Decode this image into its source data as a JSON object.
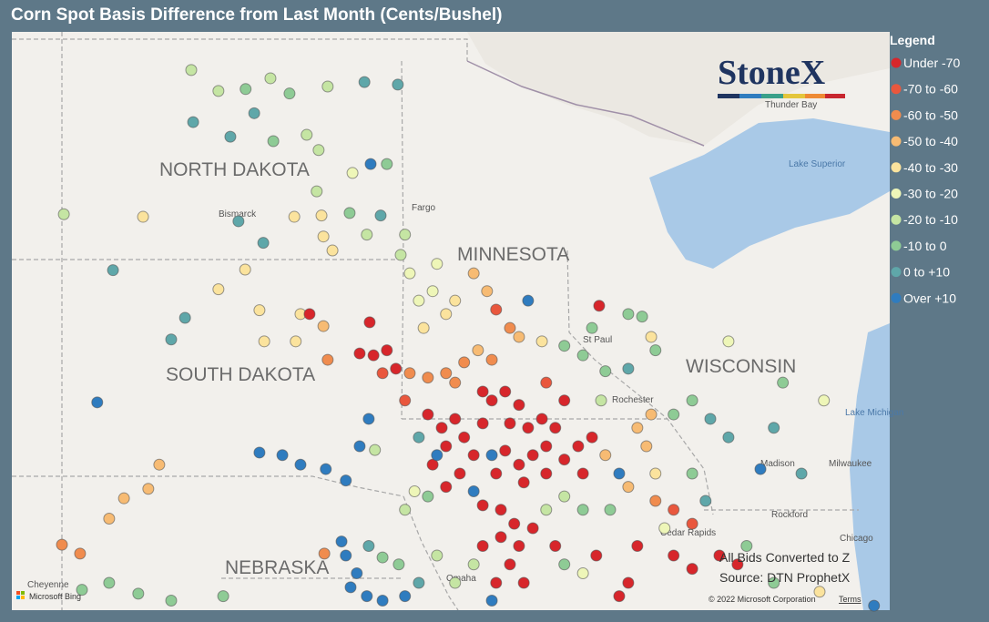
{
  "header": {
    "title": "Corn Spot Basis Difference from Last Month (Cents/Bushel)"
  },
  "legend": {
    "title": "Legend",
    "items": [
      {
        "label": "Under -70",
        "color": "#d7262b"
      },
      {
        "label": "-70 to -60",
        "color": "#e9573d"
      },
      {
        "label": "-60 to -50",
        "color": "#f08c4e"
      },
      {
        "label": "-50 to -40",
        "color": "#f7bb73"
      },
      {
        "label": "-40 to -30",
        "color": "#fbe39d"
      },
      {
        "label": "-30 to -20",
        "color": "#eef6b8"
      },
      {
        "label": "-20 to -10",
        "color": "#c5e5a3"
      },
      {
        "label": "-10 to 0",
        "color": "#8ecb95"
      },
      {
        "label": "0 to +10",
        "color": "#5fa7a9"
      },
      {
        "label": "Over +10",
        "color": "#2f7cbf"
      }
    ]
  },
  "map": {
    "lon_range": [
      -105,
      -86.6
    ],
    "lat_range": [
      40.7,
      49.8
    ],
    "states": [
      "NORTH DAKOTA",
      "MINNESOTA",
      "SOUTH DAKOTA",
      "WISCONSIN",
      "NEBRASKA"
    ],
    "places": [
      "Bismarck",
      "Fargo",
      "St Paul",
      "Rochester",
      "Thunder Bay",
      "Lake Superior",
      "Lake Michigan",
      "Milwaukee",
      "Madison",
      "Rockford",
      "Chicago",
      "Cedar Rapids",
      "Omaha",
      "Cheyenne"
    ],
    "brand": "StoneX",
    "notes": [
      "All Bids Converted to Z",
      "Source: DTN ProphetX"
    ],
    "credits": [
      "Microsoft Bing",
      "© 2022 Microsoft Corporation",
      "Terms"
    ],
    "points": [
      [
        -101.24,
        49.2,
        6
      ],
      [
        -100.67,
        48.87,
        6
      ],
      [
        -100.1,
        48.9,
        7
      ],
      [
        -99.58,
        49.07,
        6
      ],
      [
        -99.18,
        48.83,
        7
      ],
      [
        -98.38,
        48.94,
        6
      ],
      [
        -97.61,
        49.01,
        8
      ],
      [
        -96.91,
        48.97,
        8
      ],
      [
        -101.2,
        48.38,
        8
      ],
      [
        -100.42,
        48.15,
        8
      ],
      [
        -99.92,
        48.52,
        8
      ],
      [
        -99.52,
        48.08,
        7
      ],
      [
        -98.82,
        48.18,
        6
      ],
      [
        -98.57,
        47.94,
        6
      ],
      [
        -97.86,
        47.58,
        5
      ],
      [
        -97.48,
        47.72,
        9
      ],
      [
        -97.14,
        47.72,
        7
      ],
      [
        -98.61,
        47.29,
        6
      ],
      [
        -103.91,
        46.93,
        6
      ],
      [
        -102.25,
        46.89,
        4
      ],
      [
        -100.25,
        46.82,
        8
      ],
      [
        -99.08,
        46.89,
        4
      ],
      [
        -98.51,
        46.91,
        4
      ],
      [
        -97.92,
        46.95,
        7
      ],
      [
        -97.27,
        46.91,
        8
      ],
      [
        -99.73,
        46.48,
        8
      ],
      [
        -102.88,
        46.05,
        8
      ],
      [
        -98.47,
        46.58,
        4
      ],
      [
        -98.28,
        46.36,
        4
      ],
      [
        -97.56,
        46.61,
        6
      ],
      [
        -96.76,
        46.61,
        6
      ],
      [
        -100.11,
        46.06,
        4
      ],
      [
        -100.67,
        45.75,
        4
      ],
      [
        -101.37,
        45.3,
        8
      ],
      [
        -101.66,
        44.96,
        8
      ],
      [
        -103.21,
        43.97,
        9
      ],
      [
        -99.81,
        45.42,
        4
      ],
      [
        -98.95,
        45.36,
        4
      ],
      [
        -98.76,
        45.36,
        0
      ],
      [
        -98.47,
        45.17,
        3
      ],
      [
        -97.5,
        45.23,
        0
      ],
      [
        -99.05,
        44.93,
        4
      ],
      [
        -99.71,
        44.93,
        4
      ],
      [
        -98.38,
        44.64,
        2
      ],
      [
        -101.91,
        42.99,
        3
      ],
      [
        -102.65,
        42.46,
        3
      ],
      [
        -102.96,
        42.14,
        3
      ],
      [
        -102.14,
        42.61,
        3
      ],
      [
        -103.95,
        41.73,
        2
      ],
      [
        -103.57,
        41.59,
        2
      ],
      [
        -99.81,
        43.18,
        9
      ],
      [
        -99.33,
        43.14,
        9
      ],
      [
        -98.95,
        42.99,
        9
      ],
      [
        -98.42,
        42.92,
        9
      ],
      [
        -98,
        42.74,
        9
      ],
      [
        -97.52,
        43.71,
        9
      ],
      [
        -97.71,
        43.28,
        9
      ],
      [
        -97.39,
        43.22,
        6
      ],
      [
        -98.09,
        41.78,
        9
      ],
      [
        -98,
        41.56,
        9
      ],
      [
        -97.77,
        41.28,
        9
      ],
      [
        -97.9,
        41.06,
        9
      ],
      [
        -98.45,
        41.59,
        2
      ],
      [
        -97.52,
        41.71,
        8
      ],
      [
        -97.23,
        41.53,
        7
      ],
      [
        -96.89,
        41.42,
        7
      ],
      [
        -97.56,
        40.92,
        9
      ],
      [
        -97.23,
        40.85,
        9
      ],
      [
        -103.53,
        41.02,
        7
      ],
      [
        -102.96,
        41.13,
        7
      ],
      [
        -102.35,
        40.96,
        7
      ],
      [
        -101.66,
        40.85,
        7
      ],
      [
        -100.57,
        40.92,
        7
      ],
      [
        -97.71,
        44.74,
        0
      ],
      [
        -97.42,
        44.71,
        0
      ],
      [
        -97.14,
        44.79,
        0
      ],
      [
        -96.95,
        44.5,
        0
      ],
      [
        -97.23,
        44.43,
        1
      ],
      [
        -96.66,
        44.43,
        2
      ],
      [
        -96.28,
        44.36,
        2
      ],
      [
        -95.9,
        44.43,
        2
      ],
      [
        -95.52,
        44.6,
        2
      ],
      [
        -95.23,
        44.79,
        3
      ],
      [
        -94.94,
        44.64,
        2
      ],
      [
        -95.04,
        45.72,
        3
      ],
      [
        -95.32,
        46,
        3
      ],
      [
        -95.71,
        45.57,
        4
      ],
      [
        -96.18,
        45.72,
        5
      ],
      [
        -96.47,
        45.57,
        5
      ],
      [
        -96.66,
        46,
        5
      ],
      [
        -96.85,
        46.29,
        6
      ],
      [
        -96.09,
        46.15,
        5
      ],
      [
        -96.37,
        45.14,
        4
      ],
      [
        -95.9,
        45.36,
        4
      ],
      [
        -94.85,
        45.43,
        1
      ],
      [
        -94.18,
        45.57,
        9
      ],
      [
        -94.56,
        45.14,
        2
      ],
      [
        -94.37,
        45,
        3
      ],
      [
        -93.89,
        44.93,
        4
      ],
      [
        -93.42,
        44.86,
        7
      ],
      [
        -92.69,
        45.49,
        0
      ],
      [
        -92.84,
        45.14,
        7
      ],
      [
        -92.08,
        45.36,
        7
      ],
      [
        -91.79,
        45.32,
        7
      ],
      [
        -91.6,
        45,
        4
      ],
      [
        -91.51,
        44.79,
        7
      ],
      [
        -92.08,
        44.5,
        8
      ],
      [
        -92.56,
        44.46,
        7
      ],
      [
        -93.03,
        44.71,
        7
      ],
      [
        -96.28,
        43.78,
        0
      ],
      [
        -95.99,
        43.57,
        0
      ],
      [
        -95.71,
        43.71,
        0
      ],
      [
        -95.9,
        43.28,
        0
      ],
      [
        -96.18,
        42.99,
        0
      ],
      [
        -95.52,
        43.42,
        0
      ],
      [
        -95.32,
        43.14,
        0
      ],
      [
        -95.61,
        42.85,
        0
      ],
      [
        -95.9,
        42.64,
        0
      ],
      [
        -94.94,
        44,
        0
      ],
      [
        -94.66,
        44.14,
        0
      ],
      [
        -94.37,
        43.93,
        0
      ],
      [
        -94.56,
        43.64,
        0
      ],
      [
        -94.18,
        43.57,
        0
      ],
      [
        -93.89,
        43.71,
        0
      ],
      [
        -93.61,
        43.57,
        0
      ],
      [
        -93.8,
        43.28,
        0
      ],
      [
        -94.08,
        43.14,
        0
      ],
      [
        -94.37,
        42.99,
        0
      ],
      [
        -94.66,
        43.21,
        0
      ],
      [
        -94.85,
        42.85,
        0
      ],
      [
        -94.27,
        42.71,
        0
      ],
      [
        -93.8,
        42.85,
        0
      ],
      [
        -93.42,
        43.07,
        0
      ],
      [
        -93.13,
        43.28,
        0
      ],
      [
        -92.84,
        43.42,
        0
      ],
      [
        -93.03,
        42.85,
        0
      ],
      [
        -95.13,
        42.35,
        0
      ],
      [
        -94.75,
        42.28,
        0
      ],
      [
        -94.47,
        42.06,
        0
      ],
      [
        -94.08,
        41.99,
        0
      ],
      [
        -94.37,
        41.71,
        0
      ],
      [
        -94.75,
        41.85,
        0
      ],
      [
        -95.13,
        41.71,
        0
      ],
      [
        -94.56,
        41.42,
        0
      ],
      [
        -93.61,
        41.71,
        0
      ],
      [
        -92.75,
        41.56,
        0
      ],
      [
        -91.89,
        41.71,
        0
      ],
      [
        -91.13,
        41.56,
        0
      ],
      [
        -90.74,
        41.35,
        0
      ],
      [
        -90.17,
        41.56,
        0
      ],
      [
        -89.79,
        41.42,
        0
      ],
      [
        -92.08,
        41.13,
        0
      ],
      [
        -92.27,
        40.92,
        0
      ],
      [
        -94.27,
        41.13,
        0
      ],
      [
        -94.85,
        41.13,
        0
      ],
      [
        -93.42,
        44,
        0
      ],
      [
        -95.13,
        43.64,
        0
      ],
      [
        -95.13,
        44.14,
        0
      ],
      [
        -96.47,
        43.42,
        8
      ],
      [
        -96.09,
        43.14,
        9
      ],
      [
        -96.56,
        42.57,
        5
      ],
      [
        -96.28,
        42.49,
        7
      ],
      [
        -96.76,
        42.28,
        6
      ],
      [
        -95.32,
        42.57,
        9
      ],
      [
        -94.94,
        43.14,
        9
      ],
      [
        -93.42,
        42.49,
        6
      ],
      [
        -93.03,
        42.28,
        7
      ],
      [
        -93.8,
        42.28,
        6
      ],
      [
        -93.42,
        41.42,
        7
      ],
      [
        -93.03,
        41.28,
        5
      ],
      [
        -95.32,
        41.42,
        6
      ],
      [
        -95.71,
        41.13,
        6
      ],
      [
        -96.09,
        41.56,
        6
      ],
      [
        -96.47,
        41.13,
        8
      ],
      [
        -96.76,
        40.92,
        9
      ],
      [
        -94.94,
        40.85,
        9
      ],
      [
        -92.27,
        42.85,
        9
      ],
      [
        -92.08,
        42.64,
        3
      ],
      [
        -92.46,
        42.28,
        7
      ],
      [
        -91.51,
        42.42,
        2
      ],
      [
        -91.13,
        42.28,
        1
      ],
      [
        -90.74,
        42.06,
        1
      ],
      [
        -90.46,
        42.42,
        8
      ],
      [
        -91.51,
        42.85,
        4
      ],
      [
        -91.89,
        43.57,
        3
      ],
      [
        -91.7,
        43.28,
        3
      ],
      [
        -92.56,
        43.14,
        3
      ],
      [
        -91.6,
        43.78,
        3
      ],
      [
        -91.13,
        43.78,
        7
      ],
      [
        -90.74,
        44,
        7
      ],
      [
        -90.36,
        43.71,
        8
      ],
      [
        -89.98,
        43.42,
        8
      ],
      [
        -89.31,
        42.92,
        9
      ],
      [
        -89.03,
        43.57,
        8
      ],
      [
        -88.45,
        42.85,
        8
      ],
      [
        -88.84,
        44.28,
        7
      ],
      [
        -87.98,
        44,
        5
      ],
      [
        -89.98,
        44.93,
        5
      ],
      [
        -89.6,
        41.71,
        7
      ],
      [
        -89.03,
        41.13,
        7
      ],
      [
        -88.07,
        40.99,
        4
      ],
      [
        -86.93,
        40.77,
        9
      ],
      [
        -92.65,
        44,
        6
      ],
      [
        -90.74,
        42.85,
        7
      ],
      [
        -91.32,
        41.99,
        5
      ],
      [
        -93.8,
        44.28,
        1
      ],
      [
        -95.71,
        44.28,
        2
      ],
      [
        -96.76,
        44,
        1
      ]
    ]
  }
}
